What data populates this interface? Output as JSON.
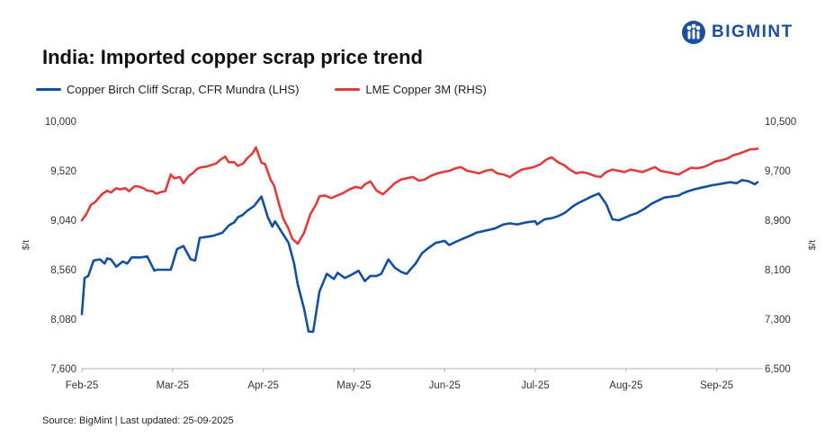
{
  "title": "India: Imported copper scrap price trend",
  "brand": {
    "name": "BIGMINT",
    "icon": "bigmint-logo-icon",
    "color": "#1c4f9c"
  },
  "source": "Source: BigMint | Last updated: 25-09-2025",
  "chart_data": {
    "type": "line",
    "x_labels": [
      "Feb-25",
      "Mar-25",
      "Apr-25",
      "May-25",
      "Jun-25",
      "Jul-25",
      "Aug-25",
      "Sep-25"
    ],
    "y_left": {
      "label": "$/t",
      "min": 7600,
      "max": 10000,
      "ticks": [
        "7,600",
        "8,080",
        "8,560",
        "9,040",
        "9,520",
        "10,000"
      ]
    },
    "y_right": {
      "label": "$/t",
      "min": 6500,
      "max": 10500,
      "ticks": [
        "6,500",
        "7,300",
        "8,100",
        "8,900",
        "9,700",
        "10,500"
      ]
    },
    "legend_position": "top-left",
    "grid": false,
    "x_range": [
      0,
      7.45
    ],
    "series": [
      {
        "name": "Copper Birch Cliff Scrap, CFR Mundra (LHS)",
        "axis": "left",
        "color": "#1450a0",
        "x": [
          0,
          0.03,
          0.07,
          0.13,
          0.2,
          0.25,
          0.28,
          0.32,
          0.38,
          0.45,
          0.5,
          0.55,
          0.6,
          0.65,
          0.72,
          0.8,
          0.82,
          0.9,
          0.98,
          1.05,
          1.12,
          1.2,
          1.25,
          1.3,
          1.38,
          1.45,
          1.55,
          1.62,
          1.68,
          1.72,
          1.77,
          1.82,
          1.9,
          1.98,
          2.05,
          2.1,
          2.13,
          2.2,
          2.28,
          2.34,
          2.38,
          2.45,
          2.5,
          2.55,
          2.62,
          2.7,
          2.78,
          2.82,
          2.9,
          2.97,
          3.05,
          3.12,
          3.18,
          3.25,
          3.3,
          3.38,
          3.45,
          3.52,
          3.58,
          3.68,
          3.75,
          3.82,
          3.9,
          4.0,
          4.05,
          4.12,
          4.2,
          4.28,
          4.35,
          4.45,
          4.55,
          4.6,
          4.65,
          4.72,
          4.8,
          4.9,
          5.0,
          5.02,
          5.1,
          5.18,
          5.25,
          5.32,
          5.38,
          5.42,
          5.48,
          5.55,
          5.62,
          5.7,
          5.78,
          5.85,
          5.92,
          6.0,
          6.05,
          6.12,
          6.2,
          6.28,
          6.35,
          6.42,
          6.5,
          6.58,
          6.62,
          6.68,
          6.75,
          6.85,
          6.95,
          7.02,
          7.08,
          7.15,
          7.22,
          7.28,
          7.35,
          7.42,
          7.45
        ],
        "values": [
          8130,
          8480,
          8500,
          8650,
          8660,
          8620,
          8670,
          8660,
          8590,
          8640,
          8620,
          8680,
          8680,
          8680,
          8690,
          8550,
          8560,
          8560,
          8560,
          8760,
          8790,
          8660,
          8650,
          8870,
          8880,
          8890,
          8920,
          8990,
          9020,
          9070,
          9090,
          9130,
          9180,
          9270,
          9070,
          8980,
          9030,
          8930,
          8820,
          8620,
          8420,
          8180,
          7960,
          7960,
          8350,
          8520,
          8470,
          8530,
          8480,
          8510,
          8550,
          8450,
          8500,
          8500,
          8520,
          8660,
          8580,
          8540,
          8520,
          8620,
          8720,
          8770,
          8820,
          8840,
          8800,
          8830,
          8860,
          8890,
          8920,
          8940,
          8960,
          8980,
          9000,
          9010,
          9000,
          9020,
          9030,
          9000,
          9050,
          9060,
          9080,
          9110,
          9150,
          9180,
          9210,
          9240,
          9270,
          9300,
          9200,
          9050,
          9040,
          9070,
          9090,
          9110,
          9150,
          9200,
          9230,
          9260,
          9270,
          9280,
          9300,
          9320,
          9340,
          9360,
          9380,
          9390,
          9400,
          9410,
          9400,
          9430,
          9420,
          9390,
          9410
        ],
        "note_unused": ""
      },
      {
        "name": "LME Copper 3M (RHS)",
        "axis": "right",
        "color": "#e03c3c",
        "x": [
          0,
          0.05,
          0.1,
          0.15,
          0.22,
          0.28,
          0.32,
          0.38,
          0.42,
          0.48,
          0.52,
          0.58,
          0.62,
          0.68,
          0.72,
          0.78,
          0.82,
          0.88,
          0.92,
          0.98,
          1.02,
          1.08,
          1.12,
          1.18,
          1.22,
          1.28,
          1.32,
          1.38,
          1.42,
          1.48,
          1.52,
          1.58,
          1.62,
          1.68,
          1.72,
          1.78,
          1.82,
          1.88,
          1.92,
          1.98,
          2.02,
          2.08,
          2.12,
          2.18,
          2.22,
          2.28,
          2.32,
          2.38,
          2.45,
          2.52,
          2.58,
          2.62,
          2.68,
          2.75,
          2.8,
          2.88,
          2.95,
          3.02,
          3.08,
          3.12,
          3.18,
          3.25,
          3.32,
          3.38,
          3.45,
          3.52,
          3.58,
          3.65,
          3.72,
          3.78,
          3.85,
          3.92,
          3.98,
          4.05,
          4.12,
          4.18,
          4.25,
          4.32,
          4.38,
          4.45,
          4.52,
          4.58,
          4.65,
          4.72,
          4.78,
          4.85,
          4.92,
          4.98,
          5.05,
          5.12,
          5.18,
          5.25,
          5.32,
          5.38,
          5.45,
          5.52,
          5.58,
          5.65,
          5.72,
          5.78,
          5.85,
          5.92,
          5.98,
          6.05,
          6.12,
          6.18,
          6.25,
          6.32,
          6.38,
          6.45,
          6.52,
          6.58,
          6.65,
          6.72,
          6.78,
          6.85,
          6.92,
          6.98,
          7.05,
          7.12,
          7.18,
          7.25,
          7.32,
          7.38,
          7.42,
          7.45
        ],
        "values": [
          8900,
          9000,
          9150,
          9200,
          9320,
          9380,
          9350,
          9420,
          9400,
          9420,
          9370,
          9450,
          9450,
          9420,
          9380,
          9370,
          9330,
          9360,
          9370,
          9640,
          9580,
          9600,
          9500,
          9620,
          9660,
          9740,
          9760,
          9770,
          9790,
          9820,
          9870,
          9930,
          9840,
          9840,
          9780,
          9820,
          9900,
          9980,
          10080,
          9830,
          9810,
          9560,
          9460,
          9130,
          8930,
          8760,
          8600,
          8520,
          8700,
          9000,
          9150,
          9290,
          9300,
          9260,
          9290,
          9340,
          9400,
          9440,
          9420,
          9480,
          9530,
          9380,
          9320,
          9400,
          9500,
          9560,
          9580,
          9600,
          9540,
          9560,
          9620,
          9660,
          9680,
          9700,
          9740,
          9760,
          9700,
          9680,
          9660,
          9700,
          9720,
          9660,
          9640,
          9600,
          9660,
          9720,
          9740,
          9760,
          9800,
          9880,
          9920,
          9840,
          9790,
          9720,
          9660,
          9680,
          9660,
          9620,
          9600,
          9680,
          9720,
          9700,
          9680,
          9720,
          9700,
          9680,
          9720,
          9760,
          9700,
          9680,
          9660,
          9640,
          9700,
          9750,
          9740,
          9760,
          9800,
          9850,
          9870,
          9900,
          9950,
          9980,
          10020,
          10050,
          10050,
          10060
        ]
      }
    ]
  }
}
